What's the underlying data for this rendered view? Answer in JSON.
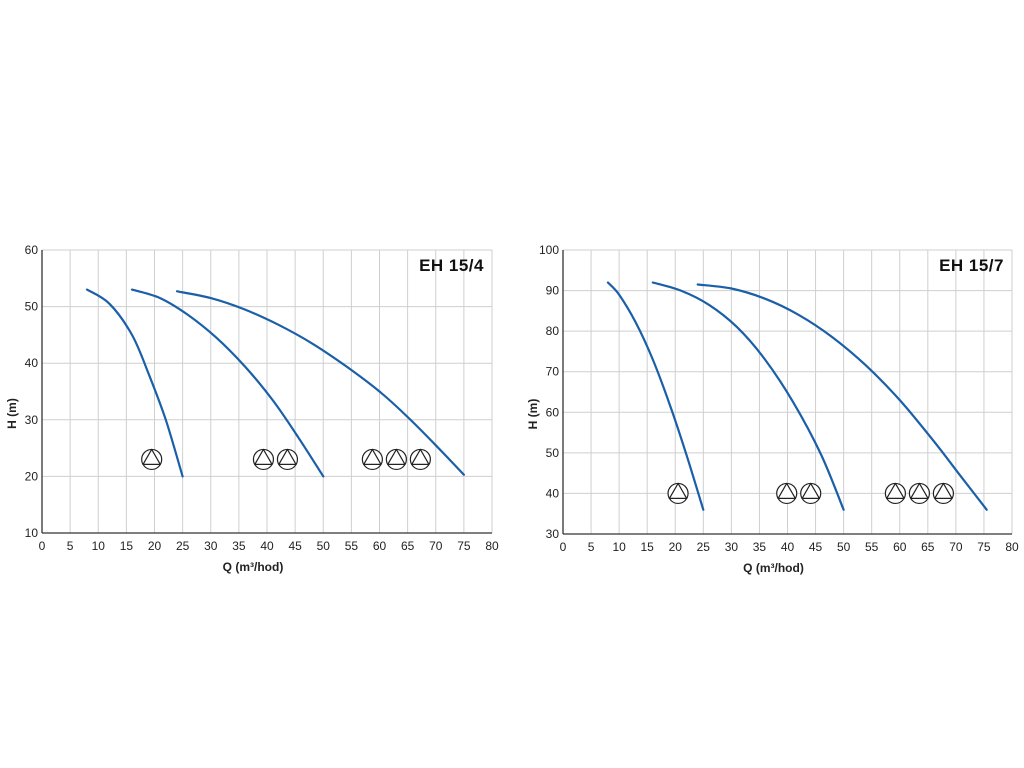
{
  "chart_data": [
    {
      "type": "line",
      "title": "EH 15/4",
      "xlabel": "Q (m³/hod)",
      "ylabel": "H (m)",
      "xlim": [
        0,
        80
      ],
      "ylim": [
        10,
        60
      ],
      "xticks": [
        0,
        5,
        10,
        15,
        20,
        25,
        30,
        35,
        40,
        45,
        50,
        55,
        60,
        65,
        70,
        75,
        80
      ],
      "yticks": [
        10,
        20,
        30,
        40,
        50,
        60
      ],
      "grid": true,
      "line_color": "#1a5fa8",
      "series": [
        {
          "pump_count": 1,
          "marker_at": [
            19.5,
            23
          ],
          "points": [
            [
              8,
              53
            ],
            [
              12,
              50.5
            ],
            [
              16,
              45
            ],
            [
              19,
              38
            ],
            [
              22,
              30
            ],
            [
              25,
              20
            ]
          ]
        },
        {
          "pump_count": 2,
          "marker_at": [
            41.5,
            23
          ],
          "points": [
            [
              16,
              53
            ],
            [
              21,
              51.5
            ],
            [
              26,
              48.5
            ],
            [
              31,
              44.5
            ],
            [
              36,
              39.5
            ],
            [
              41,
              33.5
            ],
            [
              45.5,
              27
            ],
            [
              50,
              20
            ]
          ]
        },
        {
          "pump_count": 3,
          "marker_at": [
            63,
            23
          ],
          "points": [
            [
              24,
              52.7
            ],
            [
              30,
              51.5
            ],
            [
              36,
              49.5
            ],
            [
              42,
              46.8
            ],
            [
              48,
              43.5
            ],
            [
              54,
              39.5
            ],
            [
              60,
              35
            ],
            [
              65,
              30.5
            ],
            [
              70,
              25.5
            ],
            [
              75,
              20.3
            ]
          ]
        }
      ]
    },
    {
      "type": "line",
      "title": "EH 15/7",
      "xlabel": "Q (m³/hod)",
      "ylabel": "H (m)",
      "xlim": [
        0,
        80
      ],
      "ylim": [
        30,
        100
      ],
      "xticks": [
        0,
        5,
        10,
        15,
        20,
        25,
        30,
        35,
        40,
        45,
        50,
        55,
        60,
        65,
        70,
        75,
        80
      ],
      "yticks": [
        30,
        40,
        50,
        60,
        70,
        80,
        90,
        100
      ],
      "grid": true,
      "line_color": "#1a5fa8",
      "series": [
        {
          "pump_count": 1,
          "marker_at": [
            20.5,
            40
          ],
          "points": [
            [
              8,
              92
            ],
            [
              10,
              89
            ],
            [
              13,
              82
            ],
            [
              16,
              73
            ],
            [
              19,
              62
            ],
            [
              22,
              49.5
            ],
            [
              25,
              36
            ]
          ]
        },
        {
          "pump_count": 2,
          "marker_at": [
            42,
            40
          ],
          "points": [
            [
              16,
              92
            ],
            [
              21,
              90
            ],
            [
              26,
              86.5
            ],
            [
              31,
              81
            ],
            [
              36,
              73
            ],
            [
              41,
              62.5
            ],
            [
              46,
              49.5
            ],
            [
              50,
              36
            ]
          ]
        },
        {
          "pump_count": 3,
          "marker_at": [
            63.5,
            40
          ],
          "points": [
            [
              24,
              91.5
            ],
            [
              30,
              90.5
            ],
            [
              36,
              88
            ],
            [
              42,
              84
            ],
            [
              48,
              78.5
            ],
            [
              54,
              71.5
            ],
            [
              60,
              63
            ],
            [
              66,
              53
            ],
            [
              71,
              44
            ],
            [
              75.5,
              36
            ]
          ]
        }
      ]
    }
  ]
}
